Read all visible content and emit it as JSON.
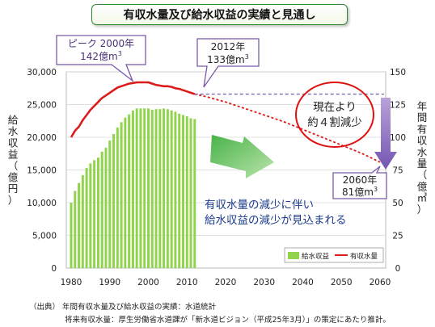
{
  "title": "有収水量及び給水収益の実績と見通し",
  "chart_data": {
    "type": "bar+line",
    "x_ticks": [
      "1980",
      "1990",
      "2000",
      "2010",
      "2020",
      "2030",
      "2040",
      "2050",
      "2060"
    ],
    "left_axis": {
      "label_chars": [
        "給",
        "水",
        "収",
        "益",
        "（",
        "億",
        "円",
        "）"
      ],
      "range": [
        0,
        30000
      ],
      "ticks": [
        "0",
        "5,000",
        "10,000",
        "15,000",
        "20,000",
        "25,000",
        "30,000"
      ]
    },
    "right_axis": {
      "label_chars": [
        "年",
        "間",
        "有",
        "収",
        "水",
        "量",
        "（",
        "億",
        "㎥",
        "）"
      ],
      "range": [
        0,
        150
      ],
      "ticks": [
        "0",
        "25",
        "50",
        "75",
        "100",
        "125",
        "150"
      ]
    },
    "bar_series": {
      "name": "給水収益",
      "color": "#8fd44a",
      "years": [
        1980,
        1981,
        1982,
        1983,
        1984,
        1985,
        1986,
        1987,
        1988,
        1989,
        1990,
        1991,
        1992,
        1993,
        1994,
        1995,
        1996,
        1997,
        1998,
        1999,
        2000,
        2001,
        2002,
        2003,
        2004,
        2005,
        2006,
        2007,
        2008,
        2009,
        2010,
        2011,
        2012
      ],
      "values": [
        10000,
        11800,
        13000,
        14200,
        15300,
        16000,
        16500,
        16900,
        17800,
        18400,
        19500,
        20500,
        21500,
        22300,
        23000,
        23500,
        24100,
        24400,
        24400,
        24400,
        24400,
        24200,
        24300,
        24300,
        24400,
        24300,
        24100,
        23900,
        23600,
        23400,
        23200,
        22900,
        22800
      ]
    },
    "line_series": {
      "name": "有収水量",
      "color": "#dd1b1b",
      "actual": {
        "years": [
          1980,
          1981,
          1982,
          1983,
          1984,
          1985,
          1986,
          1987,
          1988,
          1989,
          1990,
          1991,
          1992,
          1993,
          1994,
          1995,
          1996,
          1997,
          1998,
          1999,
          2000,
          2001,
          2002,
          2003,
          2004,
          2005,
          2006,
          2007,
          2008,
          2009,
          2010,
          2011,
          2012
        ],
        "values": [
          100,
          105,
          108,
          113,
          117,
          121,
          124,
          127,
          130,
          132,
          134,
          136,
          138,
          139,
          140,
          141,
          141.5,
          142,
          142,
          142,
          142,
          141,
          140,
          139.5,
          139,
          139,
          138.5,
          137.5,
          137,
          136,
          135,
          134,
          133
        ]
      },
      "projection": {
        "years": [
          2012,
          2015,
          2020,
          2025,
          2030,
          2035,
          2040,
          2045,
          2050,
          2055,
          2060
        ],
        "values": [
          133,
          131,
          127,
          122,
          117,
          112,
          106,
          100,
          94,
          88,
          81
        ]
      }
    },
    "legend": {
      "placement": "bottom-right",
      "bar_label": "給水収益",
      "line_label": "有収水量"
    },
    "annotations": {
      "peak": {
        "line1": "ピーク 2000年",
        "line2": "142億m",
        "sup": "3",
        "year": 2000,
        "value": 142
      },
      "a2012": {
        "line1": "2012年",
        "line2": "133億m",
        "sup": "3",
        "year": 2012,
        "value": 133
      },
      "a2060": {
        "line1": "2060年",
        "line2": "81億m",
        "sup": "3",
        "year": 2060,
        "value": 81
      },
      "reduction": {
        "line1": "現在より",
        "line2": "約４割減少"
      },
      "message": {
        "line1": "有収水量の減少に伴い",
        "line2": "給水収益の減少が見込まれる"
      },
      "reference_line_value": 133
    }
  },
  "notes": {
    "line1": "（出典） 年間有収水量及び給水収益の実績：水道統計",
    "line2": "将来有収水量：厚生労働省水道課が「新水道ビジョン（平成25年3月）」の策定にあたり推計。"
  }
}
